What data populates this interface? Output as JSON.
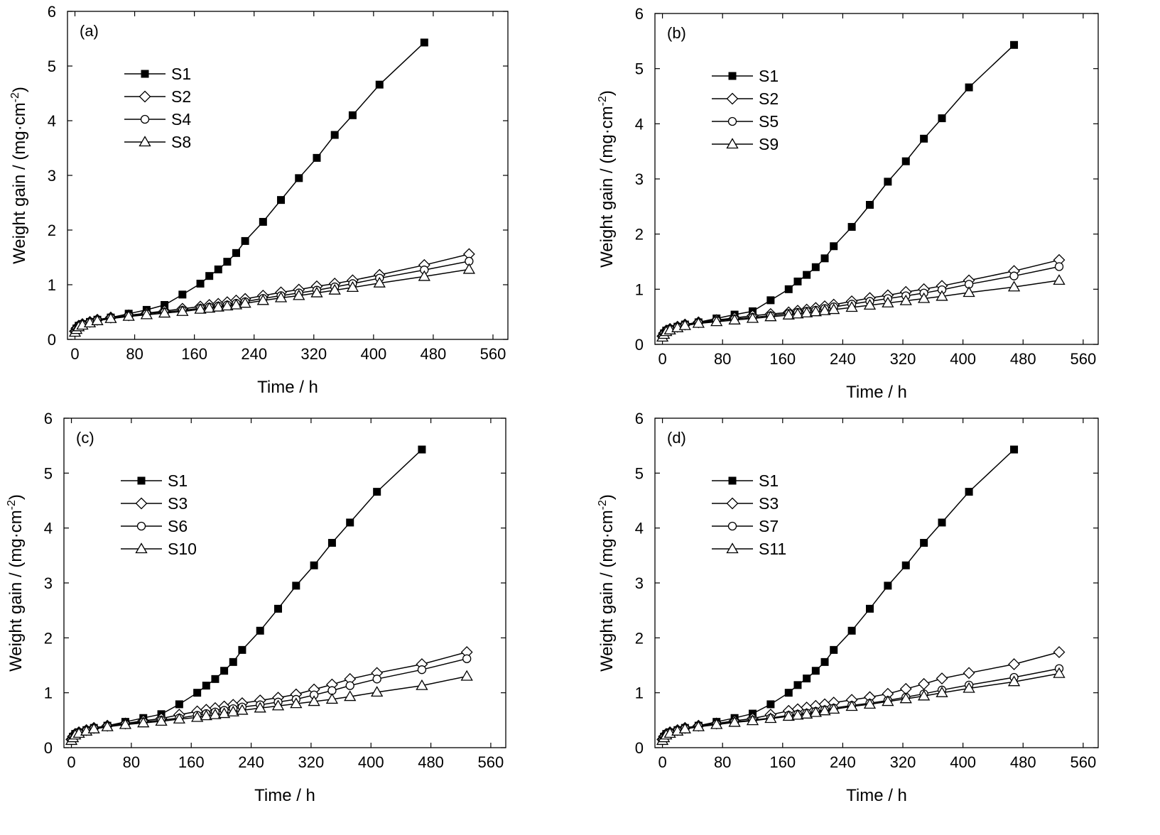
{
  "chart_data": [
    {
      "panel": "(a)",
      "type": "line",
      "xlabel": "Time / h",
      "ylabel": "Weight gain / (mg·cm⁻²)",
      "xlim": [
        -10,
        580
      ],
      "ylim": [
        0,
        6
      ],
      "xticks": [
        0,
        80,
        160,
        240,
        320,
        400,
        480,
        560
      ],
      "yticks": [
        0,
        1,
        2,
        3,
        4,
        5,
        6
      ],
      "legend_position": "upper-left",
      "series": [
        {
          "name": "S1",
          "marker": "square-filled",
          "x": [
            0,
            2,
            5,
            10,
            20,
            30,
            48,
            72,
            96,
            120,
            144,
            168,
            180,
            192,
            204,
            216,
            228,
            252,
            276,
            300,
            324,
            348,
            372,
            408,
            468
          ],
          "y": [
            0.15,
            0.2,
            0.25,
            0.28,
            0.32,
            0.36,
            0.4,
            0.47,
            0.54,
            0.63,
            0.82,
            1.02,
            1.16,
            1.28,
            1.42,
            1.58,
            1.8,
            2.15,
            2.55,
            2.95,
            3.32,
            3.74,
            4.1,
            4.66,
            5.43
          ]
        },
        {
          "name": "S2",
          "marker": "diamond-open",
          "x": [
            0,
            2,
            5,
            10,
            20,
            30,
            48,
            72,
            96,
            120,
            144,
            168,
            180,
            192,
            204,
            216,
            228,
            252,
            276,
            300,
            324,
            348,
            372,
            408,
            468,
            528
          ],
          "y": [
            0.15,
            0.2,
            0.25,
            0.28,
            0.32,
            0.36,
            0.4,
            0.44,
            0.48,
            0.52,
            0.56,
            0.6,
            0.63,
            0.65,
            0.68,
            0.71,
            0.74,
            0.8,
            0.86,
            0.91,
            0.97,
            1.02,
            1.08,
            1.18,
            1.36,
            1.56
          ]
        },
        {
          "name": "S4",
          "marker": "circle-open",
          "x": [
            0,
            2,
            5,
            10,
            20,
            30,
            48,
            72,
            96,
            120,
            144,
            168,
            180,
            192,
            204,
            216,
            228,
            252,
            276,
            300,
            324,
            348,
            372,
            408,
            468,
            528
          ],
          "y": [
            0.14,
            0.19,
            0.24,
            0.27,
            0.31,
            0.35,
            0.39,
            0.43,
            0.47,
            0.5,
            0.53,
            0.57,
            0.59,
            0.61,
            0.63,
            0.66,
            0.69,
            0.75,
            0.8,
            0.85,
            0.9,
            0.96,
            1.02,
            1.12,
            1.27,
            1.43
          ]
        },
        {
          "name": "S8",
          "marker": "triangle-open",
          "x": [
            0,
            2,
            5,
            10,
            20,
            30,
            48,
            72,
            96,
            120,
            144,
            168,
            180,
            192,
            204,
            216,
            228,
            252,
            276,
            300,
            324,
            348,
            372,
            408,
            468,
            528
          ],
          "y": [
            0.13,
            0.18,
            0.23,
            0.26,
            0.3,
            0.34,
            0.38,
            0.42,
            0.45,
            0.48,
            0.51,
            0.55,
            0.57,
            0.59,
            0.61,
            0.63,
            0.66,
            0.71,
            0.76,
            0.8,
            0.85,
            0.9,
            0.95,
            1.03,
            1.15,
            1.28
          ]
        }
      ]
    },
    {
      "panel": "(b)",
      "type": "line",
      "xlabel": "Time / h",
      "ylabel": "Weight gain / (mg·cm⁻²)",
      "xlim": [
        -10,
        580
      ],
      "ylim": [
        0,
        6
      ],
      "xticks": [
        0,
        80,
        160,
        240,
        320,
        400,
        480,
        560
      ],
      "yticks": [
        0,
        1,
        2,
        3,
        4,
        5,
        6
      ],
      "legend_position": "upper-left",
      "series": [
        {
          "name": "S1",
          "marker": "square-filled",
          "x": [
            0,
            2,
            5,
            10,
            20,
            30,
            48,
            72,
            96,
            120,
            144,
            168,
            180,
            192,
            204,
            216,
            228,
            252,
            276,
            300,
            324,
            348,
            372,
            408,
            468
          ],
          "y": [
            0.15,
            0.2,
            0.25,
            0.28,
            0.32,
            0.36,
            0.4,
            0.47,
            0.54,
            0.6,
            0.8,
            1.0,
            1.14,
            1.26,
            1.4,
            1.56,
            1.78,
            2.13,
            2.53,
            2.95,
            3.32,
            3.73,
            4.1,
            4.66,
            5.43
          ]
        },
        {
          "name": "S2",
          "marker": "diamond-open",
          "x": [
            0,
            2,
            5,
            10,
            20,
            30,
            48,
            72,
            96,
            120,
            144,
            168,
            180,
            192,
            204,
            216,
            228,
            252,
            276,
            300,
            324,
            348,
            372,
            408,
            468,
            528
          ],
          "y": [
            0.15,
            0.2,
            0.25,
            0.28,
            0.32,
            0.36,
            0.4,
            0.44,
            0.48,
            0.52,
            0.55,
            0.58,
            0.61,
            0.63,
            0.66,
            0.69,
            0.72,
            0.78,
            0.84,
            0.89,
            0.95,
            1.0,
            1.06,
            1.16,
            1.33,
            1.53
          ]
        },
        {
          "name": "S5",
          "marker": "circle-open",
          "x": [
            0,
            2,
            5,
            10,
            20,
            30,
            48,
            72,
            96,
            120,
            144,
            168,
            180,
            192,
            204,
            216,
            228,
            252,
            276,
            300,
            324,
            348,
            372,
            408,
            468,
            528
          ],
          "y": [
            0.14,
            0.19,
            0.24,
            0.27,
            0.31,
            0.35,
            0.39,
            0.43,
            0.46,
            0.49,
            0.52,
            0.56,
            0.58,
            0.6,
            0.62,
            0.65,
            0.68,
            0.73,
            0.78,
            0.83,
            0.88,
            0.93,
            0.99,
            1.09,
            1.24,
            1.41
          ]
        },
        {
          "name": "S9",
          "marker": "triangle-open",
          "x": [
            0,
            2,
            5,
            10,
            20,
            30,
            48,
            72,
            96,
            120,
            144,
            168,
            180,
            192,
            204,
            216,
            228,
            252,
            276,
            300,
            324,
            348,
            372,
            408,
            468,
            528
          ],
          "y": [
            0.13,
            0.18,
            0.23,
            0.26,
            0.3,
            0.34,
            0.38,
            0.41,
            0.44,
            0.47,
            0.5,
            0.53,
            0.55,
            0.57,
            0.59,
            0.61,
            0.63,
            0.67,
            0.71,
            0.75,
            0.79,
            0.83,
            0.87,
            0.94,
            1.04,
            1.16
          ]
        }
      ]
    },
    {
      "panel": "(c)",
      "type": "line",
      "xlabel": "Time / h",
      "ylabel": "Weight gain / (mg·cm⁻²)",
      "xlim": [
        -10,
        580
      ],
      "ylim": [
        0,
        6
      ],
      "xticks": [
        0,
        80,
        160,
        240,
        320,
        400,
        480,
        560
      ],
      "yticks": [
        0,
        1,
        2,
        3,
        4,
        5,
        6
      ],
      "legend_position": "upper-left",
      "series": [
        {
          "name": "S1",
          "marker": "square-filled",
          "x": [
            0,
            2,
            5,
            10,
            20,
            30,
            48,
            72,
            96,
            120,
            144,
            168,
            180,
            192,
            204,
            216,
            228,
            252,
            276,
            300,
            324,
            348,
            372,
            408,
            468
          ],
          "y": [
            0.15,
            0.2,
            0.25,
            0.28,
            0.32,
            0.36,
            0.4,
            0.47,
            0.54,
            0.61,
            0.79,
            1.0,
            1.13,
            1.25,
            1.4,
            1.56,
            1.78,
            2.13,
            2.53,
            2.95,
            3.32,
            3.73,
            4.1,
            4.66,
            5.43
          ]
        },
        {
          "name": "S3",
          "marker": "diamond-open",
          "x": [
            0,
            2,
            5,
            10,
            20,
            30,
            48,
            72,
            96,
            120,
            144,
            168,
            180,
            192,
            204,
            216,
            228,
            252,
            276,
            300,
            324,
            348,
            372,
            408,
            468,
            528
          ],
          "y": [
            0.15,
            0.2,
            0.25,
            0.28,
            0.32,
            0.36,
            0.4,
            0.44,
            0.49,
            0.53,
            0.6,
            0.66,
            0.69,
            0.72,
            0.75,
            0.78,
            0.81,
            0.86,
            0.91,
            0.97,
            1.06,
            1.15,
            1.25,
            1.36,
            1.52,
            1.74
          ]
        },
        {
          "name": "S6",
          "marker": "circle-open",
          "x": [
            0,
            2,
            5,
            10,
            20,
            30,
            48,
            72,
            96,
            120,
            144,
            168,
            180,
            192,
            204,
            216,
            228,
            252,
            276,
            300,
            324,
            348,
            372,
            408,
            468,
            528
          ],
          "y": [
            0.14,
            0.19,
            0.24,
            0.27,
            0.31,
            0.35,
            0.39,
            0.43,
            0.47,
            0.5,
            0.54,
            0.59,
            0.62,
            0.65,
            0.68,
            0.71,
            0.74,
            0.78,
            0.83,
            0.88,
            0.96,
            1.04,
            1.13,
            1.25,
            1.42,
            1.62
          ]
        },
        {
          "name": "S10",
          "marker": "triangle-open",
          "x": [
            0,
            2,
            5,
            10,
            20,
            30,
            48,
            72,
            96,
            120,
            144,
            168,
            180,
            192,
            204,
            216,
            228,
            252,
            276,
            300,
            324,
            348,
            372,
            408,
            468,
            528
          ],
          "y": [
            0.13,
            0.18,
            0.23,
            0.26,
            0.3,
            0.34,
            0.38,
            0.42,
            0.45,
            0.48,
            0.52,
            0.55,
            0.58,
            0.6,
            0.62,
            0.65,
            0.68,
            0.72,
            0.76,
            0.8,
            0.84,
            0.88,
            0.93,
            1.01,
            1.13,
            1.3
          ]
        }
      ]
    },
    {
      "panel": "(d)",
      "type": "line",
      "xlabel": "Time / h",
      "ylabel": "Weight gain / (mg·cm⁻²)",
      "xlim": [
        -10,
        580
      ],
      "ylim": [
        0,
        6
      ],
      "xticks": [
        0,
        80,
        160,
        240,
        320,
        400,
        480,
        560
      ],
      "yticks": [
        0,
        1,
        2,
        3,
        4,
        5,
        6
      ],
      "legend_position": "upper-left",
      "series": [
        {
          "name": "S1",
          "marker": "square-filled",
          "x": [
            0,
            2,
            5,
            10,
            20,
            30,
            48,
            72,
            96,
            120,
            144,
            168,
            180,
            192,
            204,
            216,
            228,
            252,
            276,
            300,
            324,
            348,
            372,
            408,
            468
          ],
          "y": [
            0.15,
            0.2,
            0.25,
            0.28,
            0.32,
            0.36,
            0.4,
            0.47,
            0.54,
            0.62,
            0.79,
            1.0,
            1.14,
            1.26,
            1.4,
            1.56,
            1.78,
            2.13,
            2.53,
            2.95,
            3.32,
            3.73,
            4.1,
            4.66,
            5.43
          ]
        },
        {
          "name": "S3",
          "marker": "diamond-open",
          "x": [
            0,
            2,
            5,
            10,
            20,
            30,
            48,
            72,
            96,
            120,
            144,
            168,
            180,
            192,
            204,
            216,
            228,
            252,
            276,
            300,
            324,
            348,
            372,
            408,
            468,
            528
          ],
          "y": [
            0.15,
            0.2,
            0.25,
            0.28,
            0.32,
            0.36,
            0.4,
            0.44,
            0.49,
            0.53,
            0.6,
            0.67,
            0.7,
            0.73,
            0.76,
            0.79,
            0.82,
            0.87,
            0.92,
            0.98,
            1.07,
            1.16,
            1.26,
            1.36,
            1.52,
            1.74
          ]
        },
        {
          "name": "S7",
          "marker": "circle-open",
          "x": [
            0,
            2,
            5,
            10,
            20,
            30,
            48,
            72,
            96,
            120,
            144,
            168,
            180,
            192,
            204,
            216,
            228,
            252,
            276,
            300,
            324,
            348,
            372,
            408,
            468,
            528
          ],
          "y": [
            0.14,
            0.19,
            0.24,
            0.27,
            0.31,
            0.35,
            0.39,
            0.43,
            0.47,
            0.5,
            0.54,
            0.59,
            0.61,
            0.63,
            0.66,
            0.69,
            0.72,
            0.77,
            0.81,
            0.86,
            0.92,
            0.98,
            1.05,
            1.14,
            1.28,
            1.44
          ]
        },
        {
          "name": "S11",
          "marker": "triangle-open",
          "x": [
            0,
            2,
            5,
            10,
            20,
            30,
            48,
            72,
            96,
            120,
            144,
            168,
            180,
            192,
            204,
            216,
            228,
            252,
            276,
            300,
            324,
            348,
            372,
            408,
            468,
            528
          ],
          "y": [
            0.13,
            0.18,
            0.23,
            0.26,
            0.3,
            0.34,
            0.38,
            0.42,
            0.46,
            0.49,
            0.53,
            0.57,
            0.59,
            0.61,
            0.64,
            0.67,
            0.7,
            0.75,
            0.79,
            0.84,
            0.89,
            0.94,
            1.0,
            1.08,
            1.2,
            1.35
          ]
        }
      ]
    }
  ]
}
